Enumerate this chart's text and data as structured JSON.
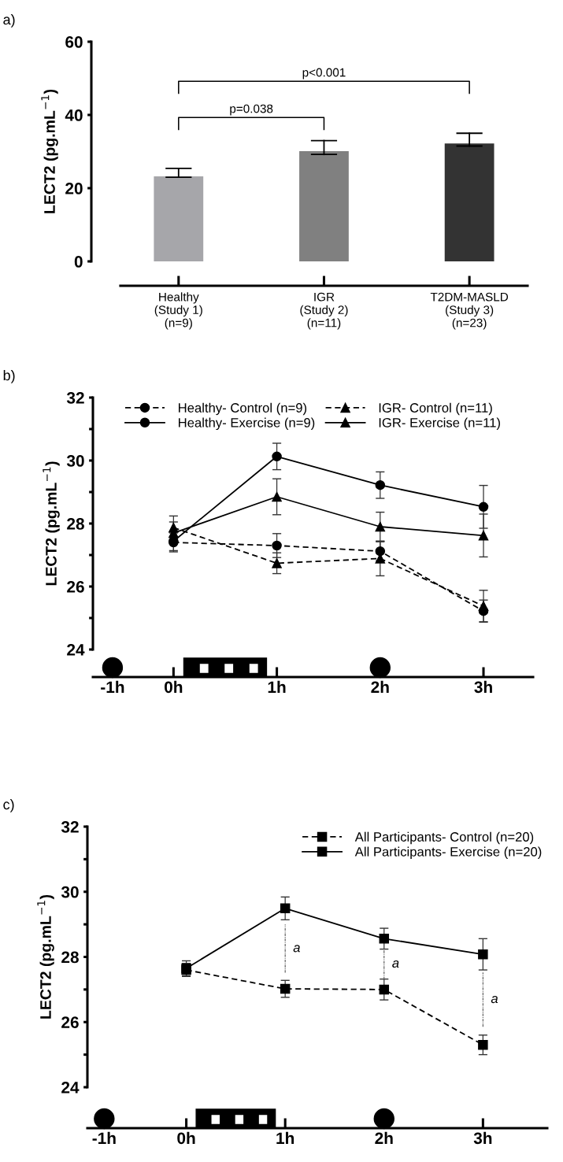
{
  "chart_data": [
    {
      "type": "bar",
      "title": "a)",
      "ylabel": "LECT2 (pg.mL$^{−1}$)",
      "categories": [
        "Healthy\n(Study 1)\n(n=9)",
        "IGR\n(Study 2)\n(n=11)",
        "T2DM-MASLD\n(Study 3)\n(n=23)"
      ],
      "values": [
        23.2,
        30.1,
        32.2
      ],
      "colors": [
        "#a6a6aa",
        "#808080",
        "#333333"
      ],
      "errors": [
        [
          23.0,
          25.4
        ],
        [
          29.2,
          33.0
        ],
        [
          31.5,
          35.0
        ]
      ],
      "ylim": [
        0,
        60
      ],
      "yticks": [
        0,
        20,
        40,
        60
      ],
      "grid": false,
      "legend": false,
      "annotations": [
        "p=0.038",
        "p<0.001"
      ]
    },
    {
      "type": "line",
      "title": "b)",
      "ylabel": "LECT2 (pg.mL$^{−1}$)",
      "x": [
        0,
        1,
        2,
        3
      ],
      "series": [
        {
          "name": "Healthy- Control (n=9)",
          "color": "#000000",
          "marker": "circle",
          "line_style": "dashed",
          "values": [
            27.4,
            27.3,
            27.12,
            25.22
          ],
          "errors": [
            0.3,
            0.38,
            0.3,
            0.35
          ]
        },
        {
          "name": "Healthy- Exercise (n=9)",
          "color": "#000000",
          "marker": "circle",
          "line_style": "solid",
          "values": [
            27.44,
            30.13,
            29.22,
            28.53
          ],
          "errors": [
            0.3,
            0.42,
            0.42,
            0.68
          ]
        },
        {
          "name": "IGR- Control (n=11)",
          "color": "#000000",
          "marker": "triangle",
          "line_style": "dashed",
          "values": [
            27.87,
            26.74,
            26.89,
            25.38
          ],
          "errors": [
            0.37,
            0.33,
            0.55,
            0.5
          ]
        },
        {
          "name": "IGR- Exercise (n=11)",
          "color": "#000000",
          "marker": "triangle",
          "line_style": "solid",
          "values": [
            27.7,
            28.85,
            27.9,
            27.62
          ],
          "errors": [
            0.35,
            0.57,
            0.46,
            0.68
          ]
        }
      ],
      "xlim": [
        -0.78,
        3.48
      ],
      "xticks": [
        {
          "value": -0.59,
          "label": "-1h"
        },
        {
          "value": 0,
          "label": "0h"
        },
        {
          "value": 1,
          "label": "1h"
        },
        {
          "value": 2,
          "label": "2h"
        },
        {
          "value": 3,
          "label": "3h"
        }
      ],
      "ylim": [
        24,
        32
      ],
      "yticks": [
        24,
        {
          "value": 25,
          "label": null
        },
        26,
        {
          "value": 27,
          "label": null
        },
        28,
        {
          "value": 29,
          "label": null
        },
        30,
        {
          "value": 31,
          "label": null
        },
        32
      ],
      "grid": false,
      "legend": "top"
    },
    {
      "type": "line",
      "title": "c)",
      "ylabel": "LECT2 (pg.mL$^{−1}$)",
      "x": [
        0,
        1,
        2,
        3
      ],
      "series": [
        {
          "name": "All Participants- Control (n=20)",
          "color": "#000000",
          "marker": "square",
          "line_style": "dashed",
          "values": [
            27.6,
            27.02,
            27.0,
            25.3
          ],
          "errors": [
            0.2,
            0.26,
            0.32,
            0.3
          ]
        },
        {
          "name": "All Participants- Exercise (n=20)",
          "color": "#000000",
          "marker": "square",
          "line_style": "solid",
          "values": [
            27.65,
            29.49,
            28.56,
            28.08
          ],
          "errors": [
            0.23,
            0.35,
            0.32,
            0.48
          ]
        }
      ],
      "xlim": [
        -1.0,
        3.65
      ],
      "xticks": [
        {
          "value": -0.83,
          "label": "-1h"
        },
        {
          "value": 0,
          "label": "0h"
        },
        {
          "value": 1,
          "label": "1h"
        },
        {
          "value": 2,
          "label": "2h"
        },
        {
          "value": 3,
          "label": "3h"
        }
      ],
      "ylim": [
        24,
        32
      ],
      "yticks": [
        24,
        {
          "value": 25,
          "label": null
        },
        26,
        {
          "value": 27,
          "label": null
        },
        28,
        {
          "value": 29,
          "label": null
        },
        30,
        {
          "value": 31,
          "label": null
        },
        32
      ],
      "grid": false,
      "legend": "top right",
      "annotations": [
        "a",
        "a",
        "a"
      ]
    }
  ]
}
